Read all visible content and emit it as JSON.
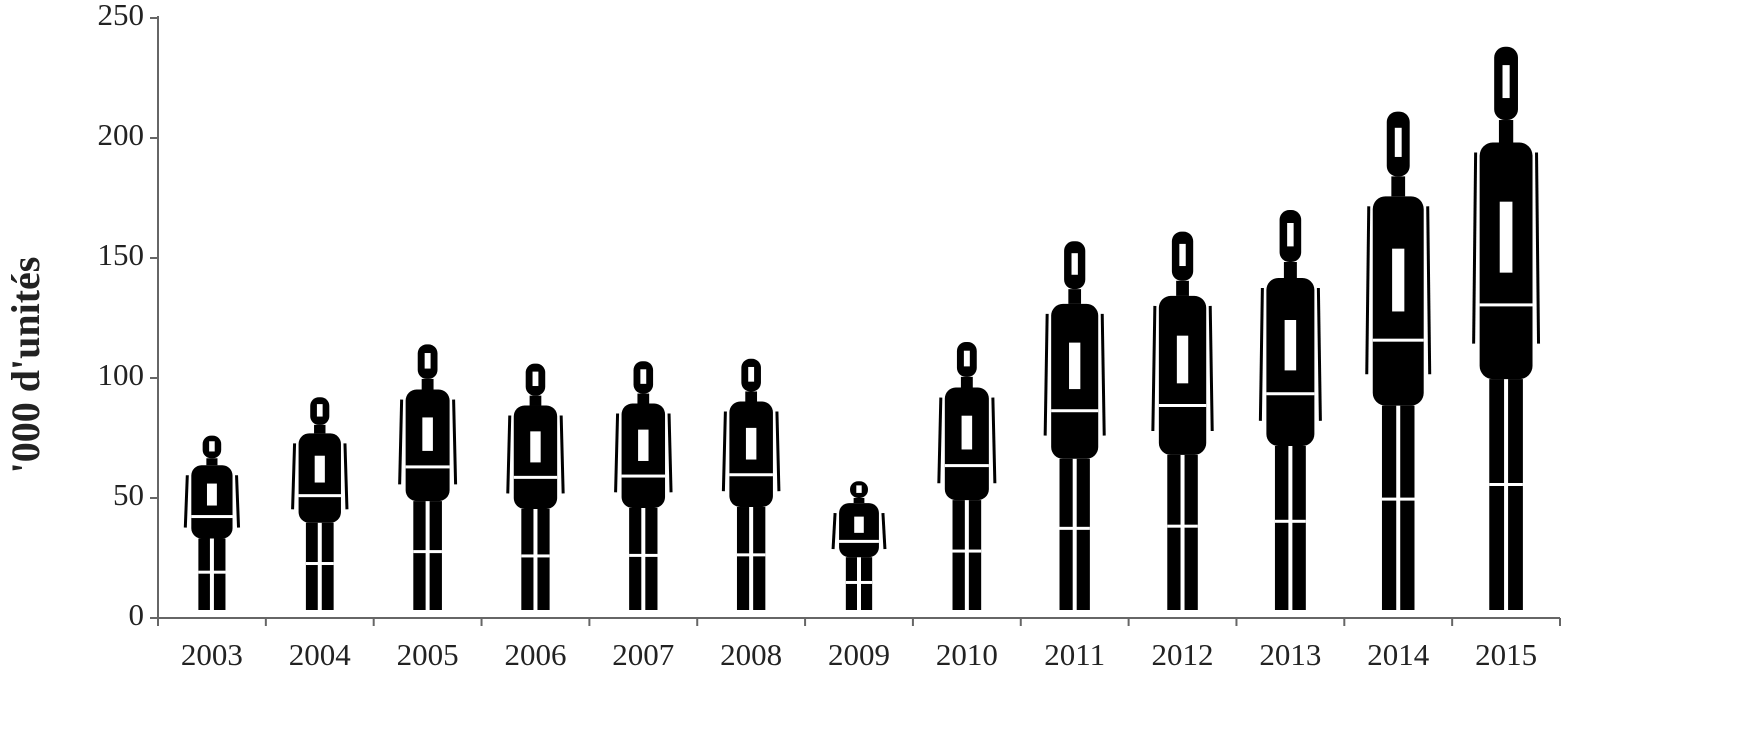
{
  "chart_data": {
    "type": "pictogram",
    "y_label": "'000 d'unités",
    "categories": [
      "2003",
      "2004",
      "2005",
      "2006",
      "2007",
      "2008",
      "2009",
      "2010",
      "2011",
      "2012",
      "2013",
      "2014",
      "2015"
    ],
    "values": [
      76,
      92,
      114,
      106,
      107,
      108,
      57,
      115,
      157,
      161,
      170,
      211,
      238
    ],
    "color": "#000000",
    "ylim": [
      0,
      250
    ],
    "yticks": [
      0,
      50,
      100,
      150,
      200,
      250
    ],
    "grid": false
  }
}
